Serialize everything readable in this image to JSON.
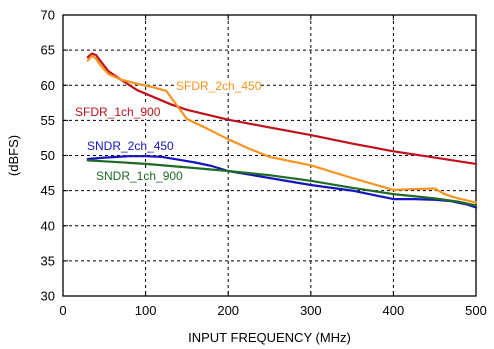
{
  "chart_data": {
    "type": "line",
    "title": "",
    "xlabel": "INPUT FREQUENCY (MHz)",
    "ylabel": "(dBFS)",
    "xlim": [
      0,
      500
    ],
    "ylim": [
      30,
      70
    ],
    "xticks": [
      0,
      100,
      200,
      300,
      400,
      500
    ],
    "yticks": [
      30,
      35,
      40,
      45,
      50,
      55,
      60,
      65,
      70
    ],
    "grid": true,
    "grid_style": "dashed",
    "series": [
      {
        "name": "SFDR_1ch_900",
        "color": "#c0121b",
        "x": [
          30,
          35,
          40,
          45,
          55,
          70,
          90,
          110,
          130,
          150,
          200,
          250,
          300,
          350,
          400,
          450,
          500
        ],
        "y": [
          64.0,
          64.5,
          64.3,
          63.5,
          62.0,
          60.8,
          59.3,
          58.3,
          57.3,
          56.5,
          55.1,
          54.0,
          52.9,
          51.7,
          50.6,
          49.7,
          48.8
        ]
      },
      {
        "name": "SFDR_2ch_450",
        "color": "#f7931e",
        "x": [
          30,
          35,
          40,
          45,
          55,
          70,
          90,
          110,
          125,
          135,
          150,
          175,
          200,
          225,
          250,
          300,
          350,
          400,
          420,
          450,
          460,
          475,
          500
        ],
        "y": [
          63.5,
          64.2,
          63.8,
          62.9,
          61.6,
          60.8,
          60.2,
          59.7,
          59.2,
          57.6,
          55.2,
          53.8,
          52.3,
          51.0,
          49.8,
          48.6,
          46.8,
          45.1,
          45.2,
          45.3,
          44.6,
          44.0,
          43.3
        ]
      },
      {
        "name": "SNDR_2ch_450",
        "color": "#1515c2",
        "x": [
          30,
          50,
          80,
          100,
          120,
          140,
          160,
          180,
          200,
          250,
          300,
          350,
          400,
          425,
          450,
          470,
          490,
          500
        ],
        "y": [
          49.5,
          49.7,
          49.9,
          49.9,
          49.8,
          49.4,
          49.0,
          48.5,
          47.8,
          46.8,
          45.8,
          45.0,
          43.8,
          43.8,
          43.7,
          43.5,
          43.0,
          42.6
        ]
      },
      {
        "name": "SNDR_1ch_900",
        "color": "#1f6b25",
        "x": [
          30,
          60,
          100,
          150,
          200,
          250,
          300,
          350,
          400,
          450,
          480,
          500
        ],
        "y": [
          49.3,
          49.1,
          48.8,
          48.3,
          47.8,
          47.2,
          46.4,
          45.4,
          44.5,
          43.9,
          43.4,
          42.9
        ]
      }
    ]
  }
}
